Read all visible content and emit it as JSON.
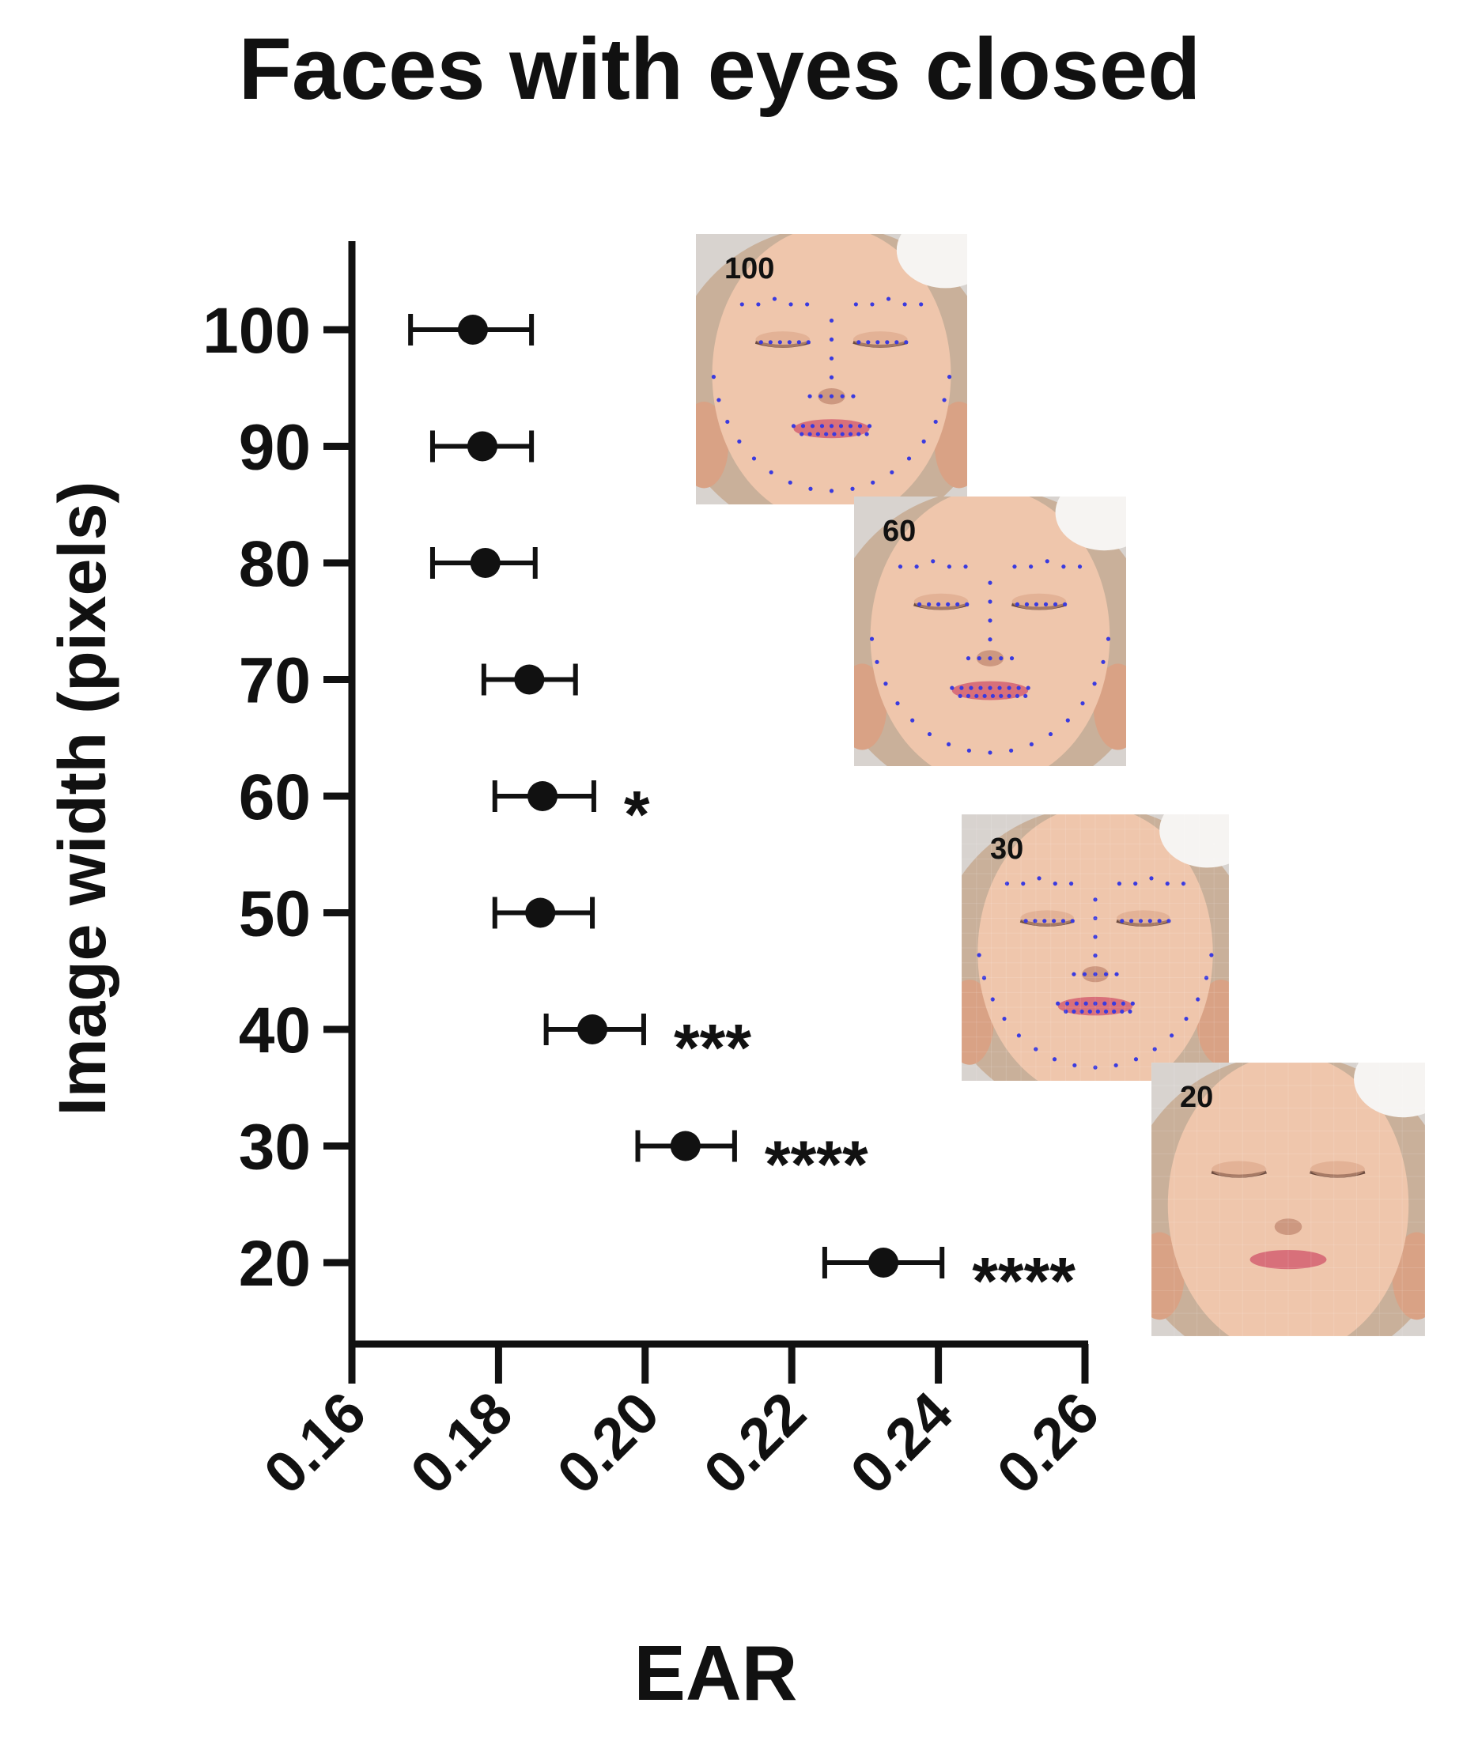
{
  "chart_data": {
    "type": "scatter",
    "title": "Faces with eyes closed",
    "xlabel": "EAR",
    "ylabel": "Image width (pixels)",
    "xlim": [
      0.16,
      0.26
    ],
    "xticks": [
      "0.16",
      "0.18",
      "0.20",
      "0.22",
      "0.24",
      "0.26"
    ],
    "yticks": [
      "100",
      "90",
      "80",
      "70",
      "60",
      "50",
      "40",
      "30",
      "20"
    ],
    "grid": false,
    "points": [
      {
        "y": 100,
        "x": 0.1765,
        "err_low": 0.168,
        "err_high": 0.1845,
        "sig": ""
      },
      {
        "y": 90,
        "x": 0.1778,
        "err_low": 0.171,
        "err_high": 0.1845,
        "sig": ""
      },
      {
        "y": 80,
        "x": 0.1782,
        "err_low": 0.171,
        "err_high": 0.185,
        "sig": ""
      },
      {
        "y": 70,
        "x": 0.1842,
        "err_low": 0.178,
        "err_high": 0.1905,
        "sig": ""
      },
      {
        "y": 60,
        "x": 0.186,
        "err_low": 0.1795,
        "err_high": 0.193,
        "sig": "*"
      },
      {
        "y": 50,
        "x": 0.1857,
        "err_low": 0.1795,
        "err_high": 0.1928,
        "sig": ""
      },
      {
        "y": 40,
        "x": 0.1928,
        "err_low": 0.1865,
        "err_high": 0.1998,
        "sig": "***"
      },
      {
        "y": 30,
        "x": 0.2055,
        "err_low": 0.199,
        "err_high": 0.2122,
        "sig": "****"
      },
      {
        "y": 20,
        "x": 0.2325,
        "err_low": 0.2245,
        "err_high": 0.2405,
        "sig": "****"
      }
    ],
    "insets": [
      {
        "label": "100",
        "resolution": 100
      },
      {
        "label": "60",
        "resolution": 60
      },
      {
        "label": "30",
        "resolution": 30
      },
      {
        "label": "20",
        "resolution": 20
      }
    ]
  },
  "colors": {
    "ink": "#111111",
    "skin": "#efc6ac",
    "skin_shadow": "#d9a285",
    "hair": "#c9b09a",
    "background_photo": "#d8d3cf",
    "landmark": "#3a3adf",
    "lips": "#d8707a",
    "headband": "#f6f4f2"
  }
}
